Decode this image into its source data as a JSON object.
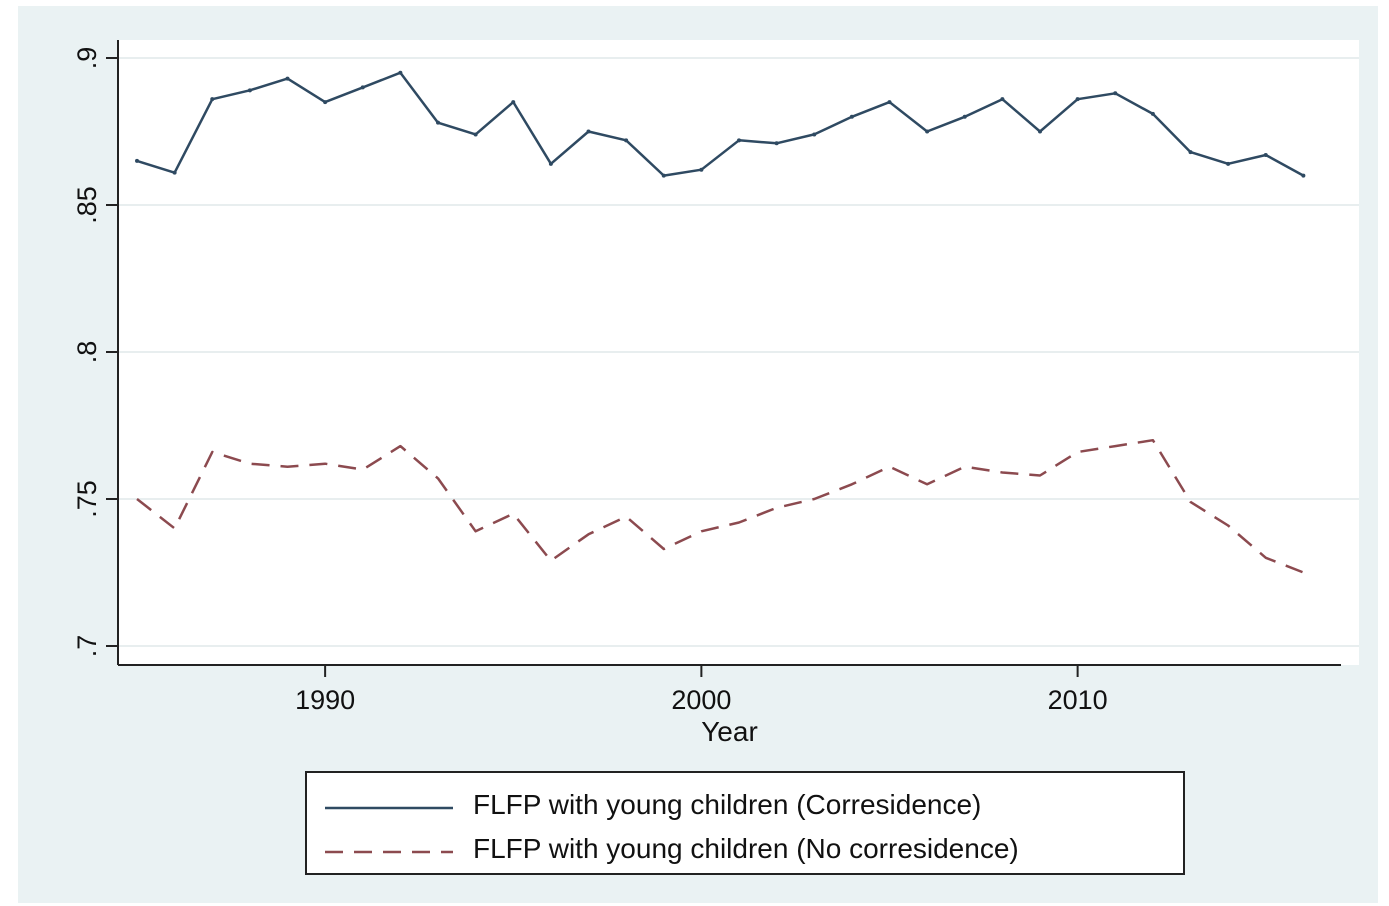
{
  "chart_data": {
    "type": "line",
    "xlabel": "Year",
    "ylabel": "",
    "xlim": [
      1985,
      2017
    ],
    "ylim": [
      0.7,
      0.91
    ],
    "xticks": [
      1990,
      2000,
      2010
    ],
    "xtick_labels": [
      "1990",
      "2000",
      "2010"
    ],
    "yticks": [
      0.7,
      0.75,
      0.8,
      0.85,
      0.9
    ],
    "ytick_labels": [
      ".7",
      ".75",
      ".8",
      ".85",
      ".9"
    ],
    "grid": true,
    "legend_position": "bottom",
    "x": [
      1985,
      1986,
      1987,
      1988,
      1989,
      1990,
      1991,
      1992,
      1993,
      1994,
      1995,
      1996,
      1997,
      1998,
      1999,
      2000,
      2001,
      2002,
      2003,
      2004,
      2005,
      2006,
      2007,
      2008,
      2009,
      2010,
      2011,
      2012,
      2013,
      2014,
      2015,
      2016
    ],
    "series": [
      {
        "name": "FLFP with young children (Corresidence)",
        "color": "#2f4a62",
        "style": "solid",
        "values": [
          0.865,
          0.861,
          0.886,
          0.889,
          0.893,
          0.885,
          0.89,
          0.895,
          0.878,
          0.874,
          0.885,
          0.864,
          0.875,
          0.872,
          0.86,
          0.862,
          0.872,
          0.871,
          0.874,
          0.88,
          0.885,
          0.875,
          0.88,
          0.886,
          0.875,
          0.886,
          0.888,
          0.881,
          0.868,
          0.864,
          0.867,
          0.86
        ]
      },
      {
        "name": "FLFP with young children (No corresidence)",
        "color": "#8c4a4f",
        "style": "dashed",
        "values": [
          0.75,
          0.74,
          0.766,
          0.762,
          0.761,
          0.762,
          0.76,
          0.768,
          0.757,
          0.739,
          0.745,
          0.729,
          0.738,
          0.744,
          0.733,
          0.739,
          0.742,
          0.747,
          0.75,
          0.755,
          0.761,
          0.755,
          0.761,
          0.759,
          0.758,
          0.766,
          0.768,
          0.77,
          0.749,
          0.741,
          0.73,
          0.725
        ]
      }
    ]
  }
}
